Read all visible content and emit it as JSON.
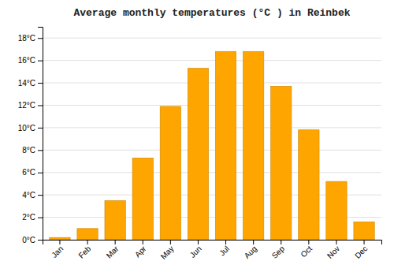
{
  "chart_data": {
    "type": "bar",
    "title": "Average monthly temperatures (°C ) in Reinbek",
    "categories": [
      "Jan",
      "Feb",
      "Mar",
      "Apr",
      "May",
      "Jun",
      "Jul",
      "Aug",
      "Sep",
      "Oct",
      "Nov",
      "Dec"
    ],
    "values": [
      0.2,
      1.0,
      3.5,
      7.3,
      11.9,
      15.3,
      16.8,
      16.8,
      13.7,
      9.8,
      5.2,
      1.6
    ],
    "color": "#FFA500",
    "ylim": [
      0,
      19.0
    ],
    "yticks": [
      {
        "value": 0,
        "label": "0°C"
      },
      {
        "value": 2,
        "label": "2°C"
      },
      {
        "value": 4,
        "label": "4°C"
      },
      {
        "value": 6,
        "label": "6°C"
      },
      {
        "value": 8,
        "label": "8°C"
      },
      {
        "value": 10,
        "label": "10°C"
      },
      {
        "value": 12,
        "label": "12°C"
      },
      {
        "value": 14,
        "label": "14°C"
      },
      {
        "value": 16,
        "label": "16°C"
      },
      {
        "value": 18,
        "label": "18°C"
      }
    ],
    "grid": true
  }
}
